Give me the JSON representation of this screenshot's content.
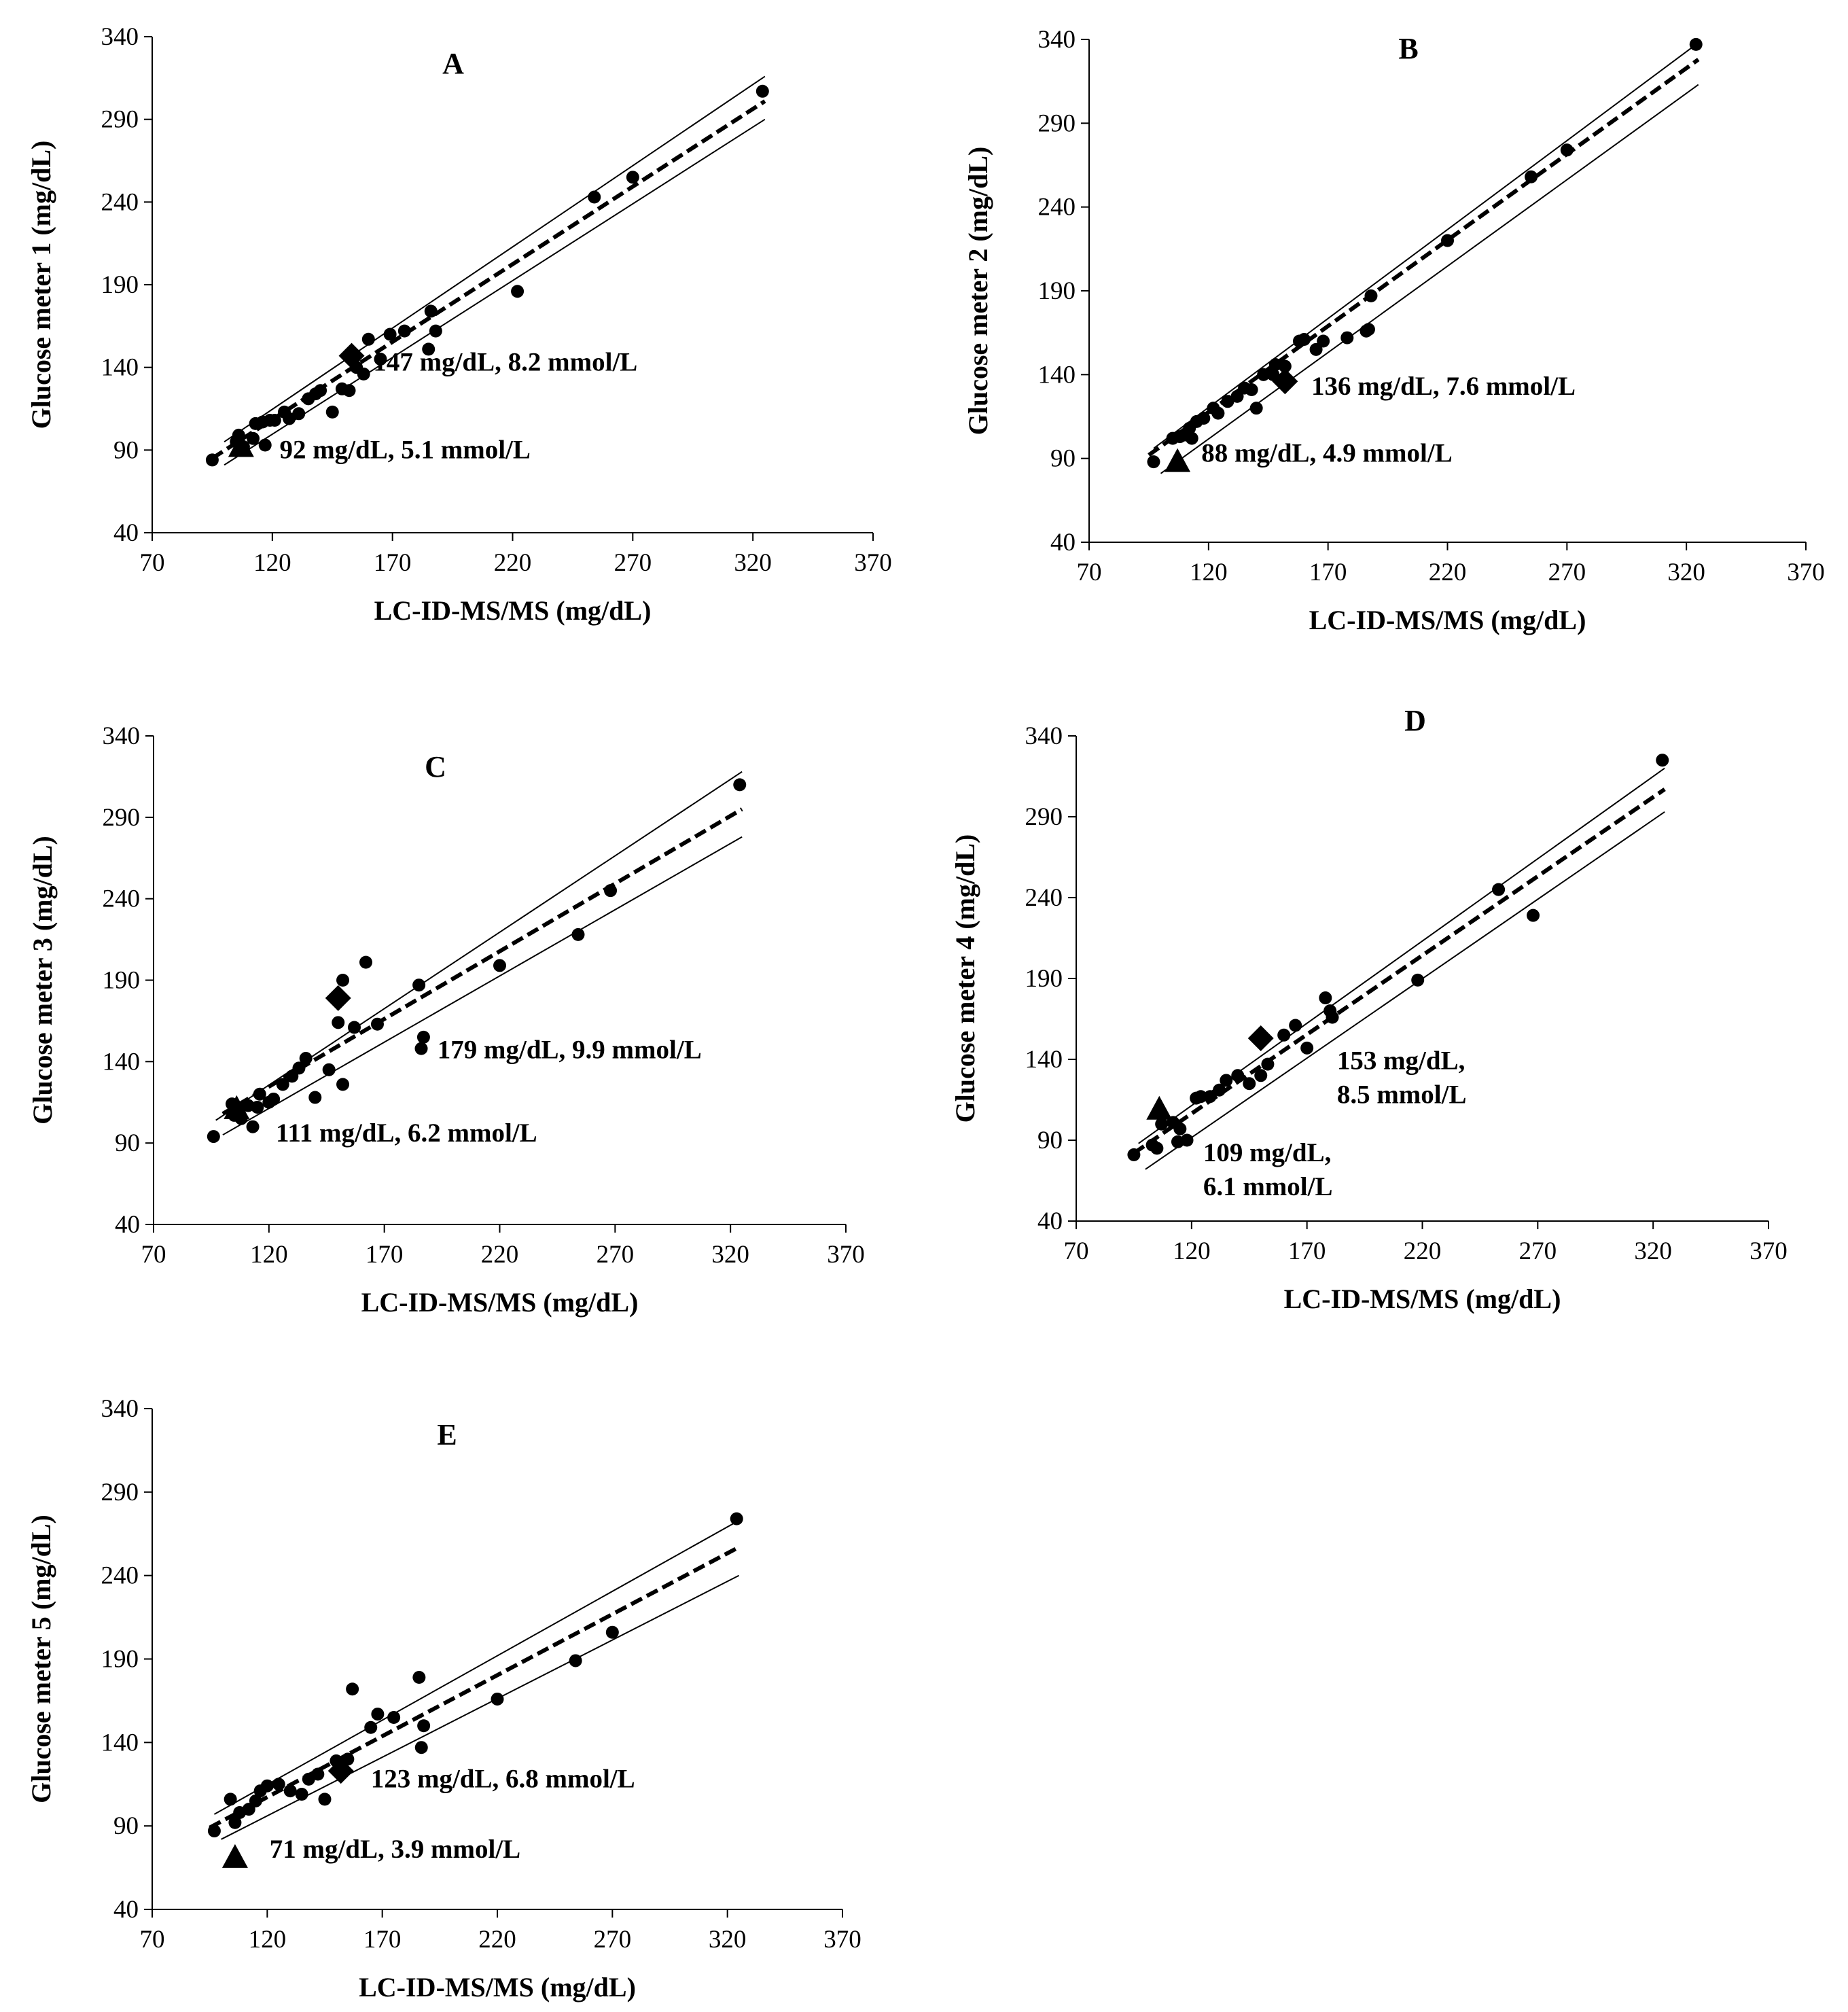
{
  "chart_data": [
    {
      "type": "scatter",
      "panel": "A",
      "xlabel": "LC-ID-MS/MS (mg/dL)",
      "ylabel": "Glucose meter 1 (mg/dL)",
      "xlim": [
        70,
        370
      ],
      "ylim": [
        40,
        340
      ],
      "xticks": [
        70,
        120,
        170,
        220,
        270,
        320,
        370
      ],
      "yticks": [
        40,
        90,
        140,
        190,
        240,
        290,
        340
      ],
      "points": [
        [
          95,
          84
        ],
        [
          105,
          95
        ],
        [
          106,
          99
        ],
        [
          108,
          92
        ],
        [
          112,
          97
        ],
        [
          113,
          106
        ],
        [
          116,
          107
        ],
        [
          117,
          93
        ],
        [
          119,
          108
        ],
        [
          121,
          108
        ],
        [
          125,
          113
        ],
        [
          127,
          109
        ],
        [
          131,
          112
        ],
        [
          135,
          121
        ],
        [
          138,
          124
        ],
        [
          140,
          126
        ],
        [
          145,
          113
        ],
        [
          149,
          127
        ],
        [
          152,
          126
        ],
        [
          155,
          140
        ],
        [
          158,
          136
        ],
        [
          160,
          157
        ],
        [
          165,
          145
        ],
        [
          169,
          160
        ],
        [
          175,
          162
        ],
        [
          185,
          151
        ],
        [
          186,
          174
        ],
        [
          188,
          162
        ],
        [
          222,
          186
        ],
        [
          254,
          243
        ],
        [
          270,
          255
        ],
        [
          324,
          307
        ]
      ],
      "highlight_diamond": [
        153,
        147
      ],
      "highlight_triangle": [
        107,
        92
      ],
      "regression": {
        "x": [
          95,
          325
        ],
        "y": [
          85,
          301
        ]
      },
      "upper_bound": {
        "x": [
          100,
          325
        ],
        "y": [
          95,
          316
        ]
      },
      "lower_bound": {
        "x": [
          100,
          325
        ],
        "y": [
          81,
          290
        ]
      },
      "annotations": [
        {
          "lines": [
            "147 mg/dL, 8.2 mmol/L"
          ],
          "at": [
            162,
            138
          ]
        },
        {
          "lines": [
            "92 mg/dL, 5.1 mmol/L"
          ],
          "at": [
            123,
            85
          ]
        }
      ]
    },
    {
      "type": "scatter",
      "panel": "B",
      "xlabel": "LC-ID-MS/MS (mg/dL)",
      "ylabel": "Glucose meter 2 (mg/dL)",
      "xlim": [
        70,
        370
      ],
      "ylim": [
        40,
        340
      ],
      "xticks": [
        70,
        120,
        170,
        220,
        270,
        320,
        370
      ],
      "yticks": [
        40,
        90,
        140,
        190,
        240,
        290,
        340
      ],
      "points": [
        [
          97,
          88
        ],
        [
          105,
          102
        ],
        [
          108,
          103
        ],
        [
          110,
          104
        ],
        [
          112,
          108
        ],
        [
          113,
          102
        ],
        [
          115,
          112
        ],
        [
          118,
          114
        ],
        [
          122,
          120
        ],
        [
          124,
          117
        ],
        [
          128,
          124
        ],
        [
          132,
          127
        ],
        [
          135,
          132
        ],
        [
          138,
          131
        ],
        [
          140,
          120
        ],
        [
          143,
          140
        ],
        [
          147,
          140
        ],
        [
          148,
          146
        ],
        [
          152,
          145
        ],
        [
          158,
          160
        ],
        [
          160,
          161
        ],
        [
          165,
          155
        ],
        [
          168,
          160
        ],
        [
          178,
          162
        ],
        [
          186,
          166
        ],
        [
          187,
          167
        ],
        [
          188,
          187
        ],
        [
          220,
          220
        ],
        [
          255,
          258
        ],
        [
          270,
          274
        ],
        [
          324,
          337
        ]
      ],
      "highlight_diamond": [
        152,
        136
      ],
      "highlight_triangle": [
        107,
        88
      ],
      "regression": {
        "x": [
          95,
          325
        ],
        "y": [
          92,
          328
        ]
      },
      "upper_bound": {
        "x": [
          97,
          325
        ],
        "y": [
          96,
          338
        ]
      },
      "lower_bound": {
        "x": [
          100,
          325
        ],
        "y": [
          81,
          313
        ]
      },
      "annotations": [
        {
          "lines": [
            "136 mg/dL, 7.6 mmol/L"
          ],
          "at": [
            163,
            128
          ]
        },
        {
          "lines": [
            "88 mg/dL, 4.9 mmol/L"
          ],
          "at": [
            117,
            88
          ]
        }
      ]
    },
    {
      "type": "scatter",
      "panel": "C",
      "xlabel": "LC-ID-MS/MS (mg/dL)",
      "ylabel": "Glucose meter 3 (mg/dL)",
      "xlim": [
        70,
        370
      ],
      "ylim": [
        40,
        340
      ],
      "xticks": [
        70,
        120,
        170,
        220,
        270,
        320,
        370
      ],
      "yticks": [
        40,
        90,
        140,
        190,
        240,
        290,
        340
      ],
      "points": [
        [
          96,
          94
        ],
        [
          104,
          114
        ],
        [
          105,
          107
        ],
        [
          108,
          105
        ],
        [
          111,
          113
        ],
        [
          113,
          100
        ],
        [
          115,
          112
        ],
        [
          116,
          120
        ],
        [
          120,
          115
        ],
        [
          122,
          117
        ],
        [
          126,
          126
        ],
        [
          130,
          131
        ],
        [
          133,
          136
        ],
        [
          136,
          142
        ],
        [
          140,
          118
        ],
        [
          146,
          135
        ],
        [
          150,
          164
        ],
        [
          152,
          126
        ],
        [
          152,
          190
        ],
        [
          157,
          161
        ],
        [
          162,
          201
        ],
        [
          167,
          163
        ],
        [
          185,
          187
        ],
        [
          186,
          148
        ],
        [
          187,
          155
        ],
        [
          220,
          199
        ],
        [
          254,
          218
        ],
        [
          268,
          245
        ],
        [
          324,
          310
        ]
      ],
      "highlight_diamond": [
        150,
        179
      ],
      "highlight_triangle": [
        106,
        111
      ],
      "regression": {
        "x": [
          100,
          325
        ],
        "y": [
          108,
          295
        ]
      },
      "upper_bound": {
        "x": [
          97,
          325
        ],
        "y": [
          104,
          318
        ]
      },
      "lower_bound": {
        "x": [
          100,
          325
        ],
        "y": [
          95,
          278
        ]
      },
      "annotations": [
        {
          "lines": [
            "179 mg/dL, 9.9 mmol/L"
          ],
          "at": [
            193,
            142
          ]
        },
        {
          "lines": [
            "111 mg/dL, 6.2 mmol/L"
          ],
          "at": [
            123,
            91
          ]
        }
      ]
    },
    {
      "type": "scatter",
      "panel": "D",
      "xlabel": "LC-ID-MS/MS (mg/dL)",
      "ylabel": "Glucose meter 4 (mg/dL)",
      "xlim": [
        70,
        370
      ],
      "ylim": [
        40,
        340
      ],
      "xticks": [
        70,
        120,
        170,
        220,
        270,
        320,
        370
      ],
      "yticks": [
        40,
        90,
        140,
        190,
        240,
        290,
        340
      ],
      "points": [
        [
          95,
          81
        ],
        [
          103,
          87
        ],
        [
          105,
          85
        ],
        [
          107,
          100
        ],
        [
          112,
          101
        ],
        [
          114,
          89
        ],
        [
          115,
          97
        ],
        [
          118,
          90
        ],
        [
          122,
          116
        ],
        [
          124,
          117
        ],
        [
          128,
          117
        ],
        [
          132,
          121
        ],
        [
          135,
          127
        ],
        [
          140,
          130
        ],
        [
          145,
          125
        ],
        [
          150,
          130
        ],
        [
          153,
          137
        ],
        [
          160,
          155
        ],
        [
          165,
          161
        ],
        [
          170,
          147
        ],
        [
          178,
          178
        ],
        [
          180,
          170
        ],
        [
          181,
          166
        ],
        [
          218,
          189
        ],
        [
          253,
          245
        ],
        [
          268,
          229
        ],
        [
          324,
          325
        ]
      ],
      "highlight_diamond": [
        150,
        153
      ],
      "highlight_triangle": [
        106,
        109
      ],
      "regression": {
        "x": [
          95,
          325
        ],
        "y": [
          82,
          307
        ]
      },
      "upper_bound": {
        "x": [
          97,
          325
        ],
        "y": [
          88,
          320
        ]
      },
      "lower_bound": {
        "x": [
          100,
          325
        ],
        "y": [
          72,
          293
        ]
      },
      "annotations": [
        {
          "lines": [
            "153 mg/dL,",
            "8.5 mmol/L"
          ],
          "at": [
            183,
            134
          ]
        },
        {
          "lines": [
            "109 mg/dL,",
            "6.1 mmol/L"
          ],
          "at": [
            125,
            77
          ]
        }
      ]
    },
    {
      "type": "scatter",
      "panel": "E",
      "xlabel": "LC-ID-MS/MS (mg/dL)",
      "ylabel": "Glucose meter 5 (mg/dL)",
      "xlim": [
        70,
        370
      ],
      "ylim": [
        40,
        340
      ],
      "xticks": [
        70,
        120,
        170,
        220,
        270,
        320,
        370
      ],
      "yticks": [
        40,
        90,
        140,
        190,
        240,
        290,
        340
      ],
      "points": [
        [
          97,
          87
        ],
        [
          104,
          106
        ],
        [
          106,
          92
        ],
        [
          108,
          98
        ],
        [
          112,
          100
        ],
        [
          115,
          105
        ],
        [
          117,
          111
        ],
        [
          120,
          114
        ],
        [
          125,
          115
        ],
        [
          130,
          111
        ],
        [
          135,
          109
        ],
        [
          138,
          118
        ],
        [
          142,
          121
        ],
        [
          145,
          106
        ],
        [
          150,
          129
        ],
        [
          155,
          130
        ],
        [
          157,
          172
        ],
        [
          165,
          149
        ],
        [
          168,
          157
        ],
        [
          175,
          155
        ],
        [
          186,
          179
        ],
        [
          188,
          150
        ],
        [
          187,
          137
        ],
        [
          220,
          166
        ],
        [
          254,
          189
        ],
        [
          270,
          206
        ],
        [
          324,
          274
        ]
      ],
      "highlight_diamond": [
        152,
        123
      ],
      "highlight_triangle": [
        106,
        71
      ],
      "regression": {
        "x": [
          95,
          325
        ],
        "y": [
          89,
          257
        ]
      },
      "upper_bound": {
        "x": [
          97,
          325
        ],
        "y": [
          97,
          273
        ]
      },
      "lower_bound": {
        "x": [
          100,
          325
        ],
        "y": [
          82,
          240
        ]
      },
      "annotations": [
        {
          "lines": [
            "123 mg/dL, 6.8 mmol/L"
          ],
          "at": [
            165,
            113
          ]
        },
        {
          "lines": [
            "71 mg/dL, 3.9 mmol/L"
          ],
          "at": [
            121,
            71
          ]
        }
      ]
    }
  ]
}
